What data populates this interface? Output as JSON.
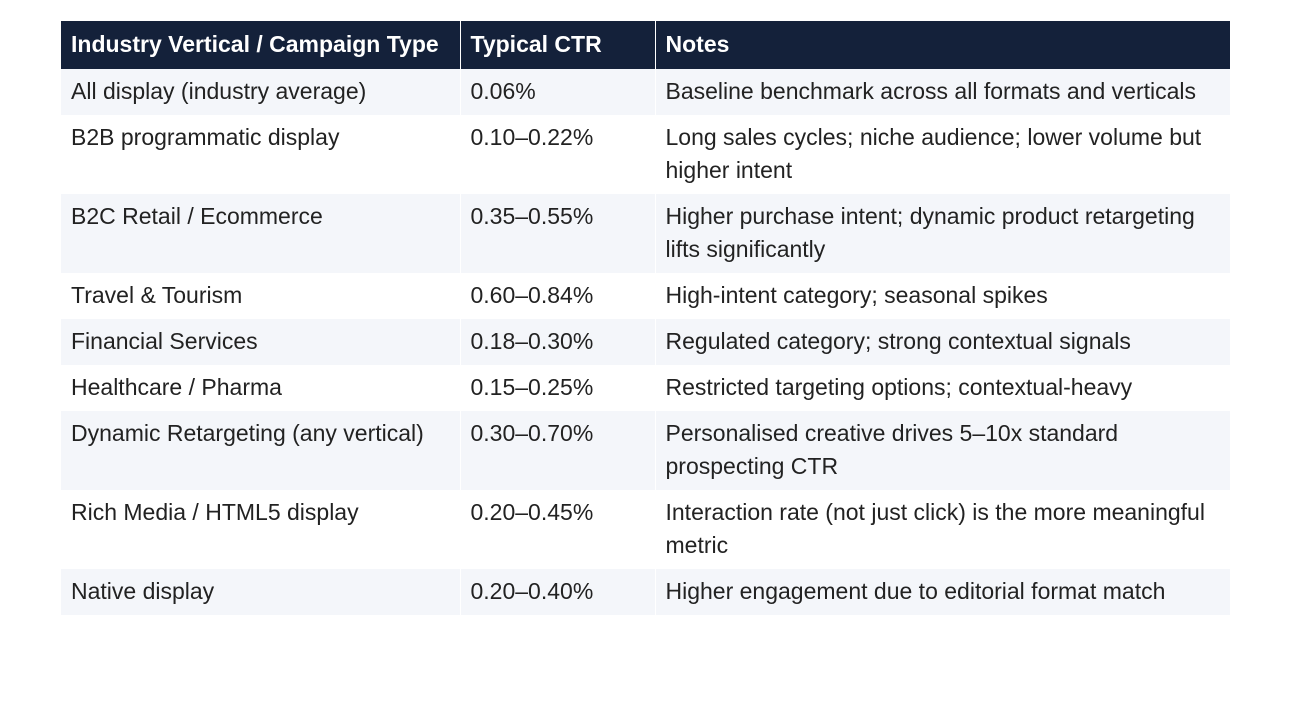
{
  "table": {
    "headers": [
      "Industry Vertical / Campaign Type",
      "Typical CTR",
      "Notes"
    ],
    "rows": [
      [
        "All display (industry average)",
        "0.06%",
        "Baseline benchmark across all formats and verticals"
      ],
      [
        "B2B programmatic display",
        "0.10–0.22%",
        "Long sales cycles; niche audience; lower volume but higher intent"
      ],
      [
        "B2C Retail / Ecommerce",
        "0.35–0.55%",
        "Higher purchase intent; dynamic product retargeting lifts significantly"
      ],
      [
        "Travel & Tourism",
        "0.60–0.84%",
        "High-intent category; seasonal spikes"
      ],
      [
        "Financial Services",
        "0.18–0.30%",
        "Regulated category; strong contextual signals"
      ],
      [
        "Healthcare / Pharma",
        "0.15–0.25%",
        "Restricted targeting options; contextual-heavy"
      ],
      [
        "Dynamic Retargeting (any vertical)",
        "0.30–0.70%",
        "Personalised creative drives 5–10x standard prospecting CTR"
      ],
      [
        "Rich Media / HTML5 display",
        "0.20–0.45%",
        "Interaction rate (not just click) is the more meaningful metric"
      ],
      [
        "Native display",
        "0.20–0.40%",
        "Higher engagement due to editorial format match"
      ]
    ]
  },
  "colors": {
    "header_bg": "#14213a",
    "row_alt_bg": "#f4f6fa"
  }
}
